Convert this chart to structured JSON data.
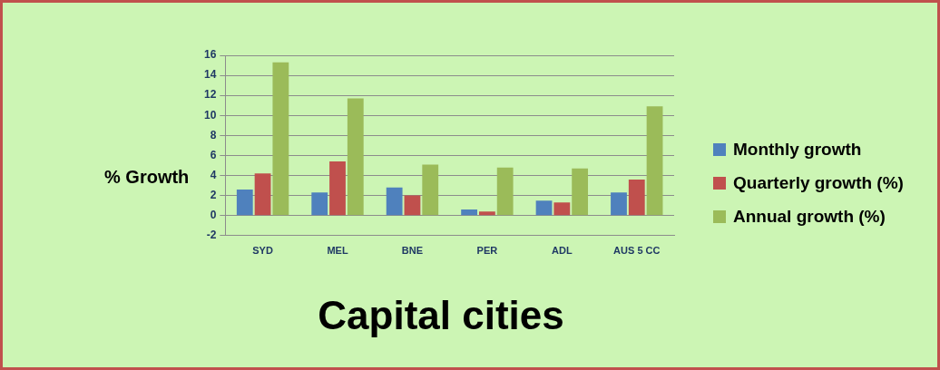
{
  "chart_data": {
    "type": "bar",
    "title": "Capital cities",
    "ylabel": "% Growth",
    "categories": [
      "SYD",
      "MEL",
      "BNE",
      "PER",
      "ADL",
      "AUS 5 CC"
    ],
    "series": [
      {
        "name": "Monthly growth",
        "color": "#4f81bd",
        "values": [
          2.6,
          2.3,
          2.8,
          0.6,
          1.5,
          2.3
        ]
      },
      {
        "name": "Quarterly growth (%)",
        "color": "#c0504d",
        "values": [
          4.2,
          5.4,
          2.0,
          0.4,
          1.3,
          3.6
        ]
      },
      {
        "name": "Annual growth (%)",
        "color": "#9bbb59",
        "values": [
          15.3,
          11.7,
          5.1,
          4.8,
          4.7,
          10.9
        ]
      }
    ],
    "ylim": [
      -2,
      16
    ],
    "yticks": [
      -2,
      0,
      2,
      4,
      6,
      8,
      10,
      12,
      14,
      16
    ],
    "grid": "y",
    "legend": "right"
  }
}
